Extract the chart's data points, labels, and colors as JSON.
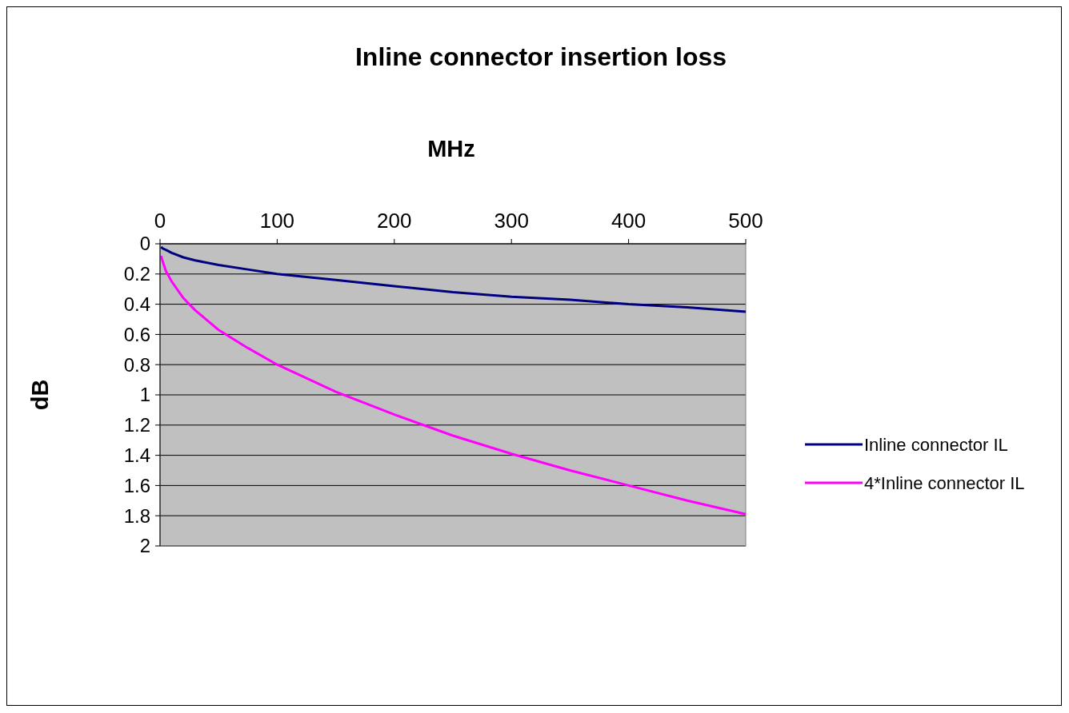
{
  "chart_data": {
    "type": "line",
    "title": "Inline connector insertion loss",
    "xlabel": "MHz",
    "ylabel": "dB",
    "x": [
      1,
      2,
      5,
      10,
      20,
      30,
      50,
      75,
      100,
      150,
      200,
      250,
      300,
      350,
      400,
      450,
      500
    ],
    "series": [
      {
        "name": "Inline connector IL",
        "color": "#000080",
        "values": [
          0.02,
          0.03,
          0.04,
          0.06,
          0.09,
          0.11,
          0.14,
          0.17,
          0.2,
          0.24,
          0.28,
          0.32,
          0.35,
          0.37,
          0.4,
          0.42,
          0.45
        ]
      },
      {
        "name": "4*Inline connector IL",
        "color": "#ff00ff",
        "values": [
          0.08,
          0.11,
          0.18,
          0.25,
          0.36,
          0.44,
          0.57,
          0.69,
          0.8,
          0.98,
          1.13,
          1.27,
          1.39,
          1.5,
          1.6,
          1.7,
          1.79
        ]
      }
    ],
    "xlim": [
      0,
      500
    ],
    "xticks": [
      0,
      100,
      200,
      300,
      400,
      500
    ],
    "ylim": [
      2,
      0
    ],
    "yticks": [
      0,
      0.2,
      0.4,
      0.6,
      0.8,
      1,
      1.2,
      1.4,
      1.6,
      1.8,
      2
    ],
    "grid": "y",
    "legend": "right",
    "marker": "none",
    "line_style": "solid"
  }
}
